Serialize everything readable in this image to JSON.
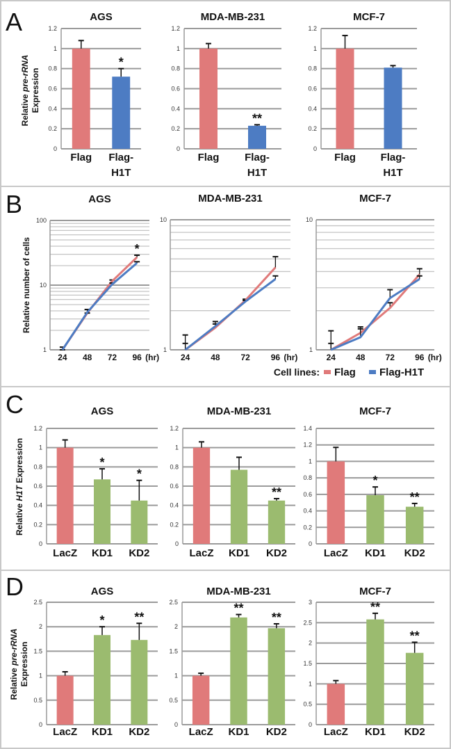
{
  "panels": [
    {
      "letter": "A"
    },
    {
      "letter": "B"
    },
    {
      "letter": "C"
    },
    {
      "letter": "D"
    }
  ],
  "colors": {
    "flag": "#e07a7a",
    "h1t": "#4d7cc3",
    "lacz": "#e07a7a",
    "kd": "#9bbb6f",
    "grid": "#9a9a9a"
  },
  "legend": {
    "title": "Cell lines:",
    "items": [
      {
        "label": "Flag",
        "color": "#e07a7a"
      },
      {
        "label": "Flag-H1T",
        "color": "#4d7cc3"
      }
    ]
  },
  "chart_data": [
    {
      "panel": "A",
      "type": "bar",
      "title": "AGS",
      "ylim": [
        0,
        1.2
      ],
      "yticks": [
        "0",
        "0.2",
        "0.4",
        "0.6",
        "0.8",
        "1",
        "1.2"
      ],
      "ylabel": [
        [
          {
            "text": "Relative ",
            "italic": false
          },
          {
            "text": "pre-rRNA",
            "italic": true
          }
        ],
        [
          {
            "text": "Expression",
            "italic": false
          }
        ]
      ],
      "categories": [
        [
          "Flag"
        ],
        [
          "Flag-",
          "H1T"
        ]
      ],
      "values": [
        1.0,
        0.72
      ],
      "err": [
        0.08,
        0.08
      ],
      "sig": [
        "",
        "*"
      ],
      "colors": [
        "#e07a7a",
        "#4d7cc3"
      ]
    },
    {
      "panel": "A",
      "type": "bar",
      "title": "MDA-MB-231",
      "ylim": [
        0,
        1.2
      ],
      "yticks": [
        "0",
        "0.2",
        "0.4",
        "0.6",
        "0.8",
        "1",
        "1.2"
      ],
      "categories": [
        [
          "Flag"
        ],
        [
          "Flag-",
          "H1T"
        ]
      ],
      "values": [
        1.0,
        0.23
      ],
      "err": [
        0.05,
        0.01
      ],
      "sig": [
        "",
        "**"
      ],
      "colors": [
        "#e07a7a",
        "#4d7cc3"
      ]
    },
    {
      "panel": "A",
      "type": "bar",
      "title": "MCF-7",
      "ylim": [
        0,
        1.2
      ],
      "yticks": [
        "0",
        "0.2",
        "0.4",
        "0.6",
        "0.8",
        "1",
        "1.2"
      ],
      "categories": [
        [
          "Flag"
        ],
        [
          "Flag-",
          "H1T"
        ]
      ],
      "values": [
        1.0,
        0.81
      ],
      "err": [
        0.13,
        0.02
      ],
      "sig": [
        "",
        ""
      ],
      "colors": [
        "#e07a7a",
        "#4d7cc3"
      ]
    },
    {
      "panel": "B",
      "type": "line",
      "scale": "log",
      "title": "AGS",
      "ylim": [
        1,
        100
      ],
      "yticks": [
        "1",
        "10",
        "100"
      ],
      "ylabel": [
        [
          {
            "text": "Relative number of cells",
            "italic": false
          }
        ]
      ],
      "x": [
        "24",
        "48",
        "72",
        "96"
      ],
      "x_unit": "(hr)",
      "series": [
        {
          "name": "Flag",
          "color": "#e07a7a",
          "values": [
            1,
            3.7,
            11.5,
            27
          ],
          "err_cap": [
            1.1,
            4.2,
            12,
            29
          ]
        },
        {
          "name": "Flag-H1T",
          "color": "#4d7cc3",
          "values": [
            1,
            3.8,
            10.3,
            22
          ],
          "err_cap": [
            1,
            3.7,
            10.8,
            23
          ]
        }
      ],
      "sig": [
        "",
        "",
        "",
        "*"
      ]
    },
    {
      "panel": "B",
      "type": "line",
      "scale": "log",
      "title": "MDA-MB-231",
      "ylim": [
        1,
        10
      ],
      "yticks": [
        "1",
        "10"
      ],
      "x": [
        "24",
        "48",
        "72",
        "96"
      ],
      "x_unit": "(hr)",
      "series": [
        {
          "name": "Flag",
          "color": "#e07a7a",
          "values": [
            1,
            1.48,
            2.4,
            4.3
          ],
          "err_cap": [
            1.3,
            1.65,
            2.45,
            5.2
          ]
        },
        {
          "name": "Flag-H1T",
          "color": "#4d7cc3",
          "values": [
            1,
            1.52,
            2.35,
            3.5
          ],
          "err_cap": [
            1.12,
            1.58,
            2.4,
            3.7
          ]
        }
      ],
      "sig": [
        "",
        "",
        "",
        ""
      ]
    },
    {
      "panel": "B",
      "type": "line",
      "scale": "log",
      "title": "MCF-7",
      "ylim": [
        1,
        10
      ],
      "yticks": [
        "1",
        "10"
      ],
      "x": [
        "24",
        "48",
        "72",
        "96"
      ],
      "x_unit": "(hr)",
      "series": [
        {
          "name": "Flag",
          "color": "#e07a7a",
          "values": [
            1,
            1.35,
            2.1,
            3.8
          ],
          "err_cap": [
            1.4,
            1.5,
            2.3,
            4.2
          ]
        },
        {
          "name": "Flag-H1T",
          "color": "#4d7cc3",
          "values": [
            1,
            1.25,
            2.5,
            3.5
          ],
          "err_cap": [
            1.12,
            1.45,
            2.9,
            3.7
          ]
        }
      ],
      "sig": [
        "",
        "",
        "",
        ""
      ]
    },
    {
      "panel": "C",
      "type": "bar",
      "title": "AGS",
      "ylim": [
        0,
        1.2
      ],
      "yticks": [
        "0",
        "0.2",
        "0.4",
        "0.6",
        "0.8",
        "1",
        "1.2"
      ],
      "ylabel": [
        [
          {
            "text": "Relative ",
            "italic": false
          },
          {
            "text": "H1T",
            "italic": true
          },
          {
            "text": " Expression",
            "italic": false
          }
        ]
      ],
      "categories": [
        [
          "LacZ"
        ],
        [
          "KD1"
        ],
        [
          "KD2"
        ]
      ],
      "values": [
        1.0,
        0.67,
        0.45
      ],
      "err": [
        0.08,
        0.11,
        0.21
      ],
      "sig": [
        "",
        "*",
        "*"
      ],
      "colors": [
        "#e07a7a",
        "#9bbb6f",
        "#9bbb6f"
      ]
    },
    {
      "panel": "C",
      "type": "bar",
      "title": "MDA-MB-231",
      "ylim": [
        0,
        1.2
      ],
      "yticks": [
        "0",
        "0.2",
        "0.4",
        "0.6",
        "0.8",
        "1",
        "1.2"
      ],
      "categories": [
        [
          "LacZ"
        ],
        [
          "KD1"
        ],
        [
          "KD2"
        ]
      ],
      "values": [
        1.0,
        0.77,
        0.45
      ],
      "err": [
        0.06,
        0.13,
        0.02
      ],
      "sig": [
        "",
        "",
        "**"
      ],
      "colors": [
        "#e07a7a",
        "#9bbb6f",
        "#9bbb6f"
      ]
    },
    {
      "panel": "C",
      "type": "bar",
      "title": "MCF-7",
      "ylim": [
        0,
        1.4
      ],
      "yticks": [
        "0",
        "0.2",
        "0.4",
        "0.6",
        "0.8",
        "1",
        "1.2",
        "1.4"
      ],
      "categories": [
        [
          "LacZ"
        ],
        [
          "KD1"
        ],
        [
          "KD2"
        ]
      ],
      "values": [
        1.0,
        0.59,
        0.45
      ],
      "err": [
        0.17,
        0.1,
        0.04
      ],
      "sig": [
        "",
        "*",
        "**"
      ],
      "colors": [
        "#e07a7a",
        "#9bbb6f",
        "#9bbb6f"
      ]
    },
    {
      "panel": "D",
      "type": "bar",
      "title": "AGS",
      "ylim": [
        0,
        2.5
      ],
      "yticks": [
        "0",
        "0.5",
        "1",
        "1.5",
        "2",
        "2.5"
      ],
      "ylabel": [
        [
          {
            "text": "Relative ",
            "italic": false
          },
          {
            "text": "pre-rRNA",
            "italic": true
          }
        ],
        [
          {
            "text": "Expression",
            "italic": false
          }
        ]
      ],
      "categories": [
        [
          "LacZ"
        ],
        [
          "KD1"
        ],
        [
          "KD2"
        ]
      ],
      "values": [
        1.0,
        1.83,
        1.73
      ],
      "err": [
        0.08,
        0.17,
        0.34
      ],
      "sig": [
        "",
        "*",
        "**"
      ],
      "colors": [
        "#e07a7a",
        "#9bbb6f",
        "#9bbb6f"
      ]
    },
    {
      "panel": "D",
      "type": "bar",
      "title": "MDA-MB-231",
      "ylim": [
        0,
        2.5
      ],
      "yticks": [
        "0",
        "0.5",
        "1",
        "1.5",
        "2",
        "2.5"
      ],
      "categories": [
        [
          "LacZ"
        ],
        [
          "KD1"
        ],
        [
          "KD2"
        ]
      ],
      "values": [
        1.0,
        2.19,
        1.97
      ],
      "err": [
        0.05,
        0.06,
        0.09
      ],
      "sig": [
        "",
        "**",
        "**"
      ],
      "colors": [
        "#e07a7a",
        "#9bbb6f",
        "#9bbb6f"
      ]
    },
    {
      "panel": "D",
      "type": "bar",
      "title": "MCF-7",
      "ylim": [
        0,
        3
      ],
      "yticks": [
        "0",
        "0.5",
        "1",
        "1.5",
        "2",
        "2.5",
        "3"
      ],
      "categories": [
        [
          "LacZ"
        ],
        [
          "KD1"
        ],
        [
          "KD2"
        ]
      ],
      "values": [
        1.0,
        2.58,
        1.76
      ],
      "err": [
        0.08,
        0.15,
        0.26
      ],
      "sig": [
        "",
        "**",
        "**"
      ],
      "colors": [
        "#e07a7a",
        "#9bbb6f",
        "#9bbb6f"
      ]
    }
  ]
}
